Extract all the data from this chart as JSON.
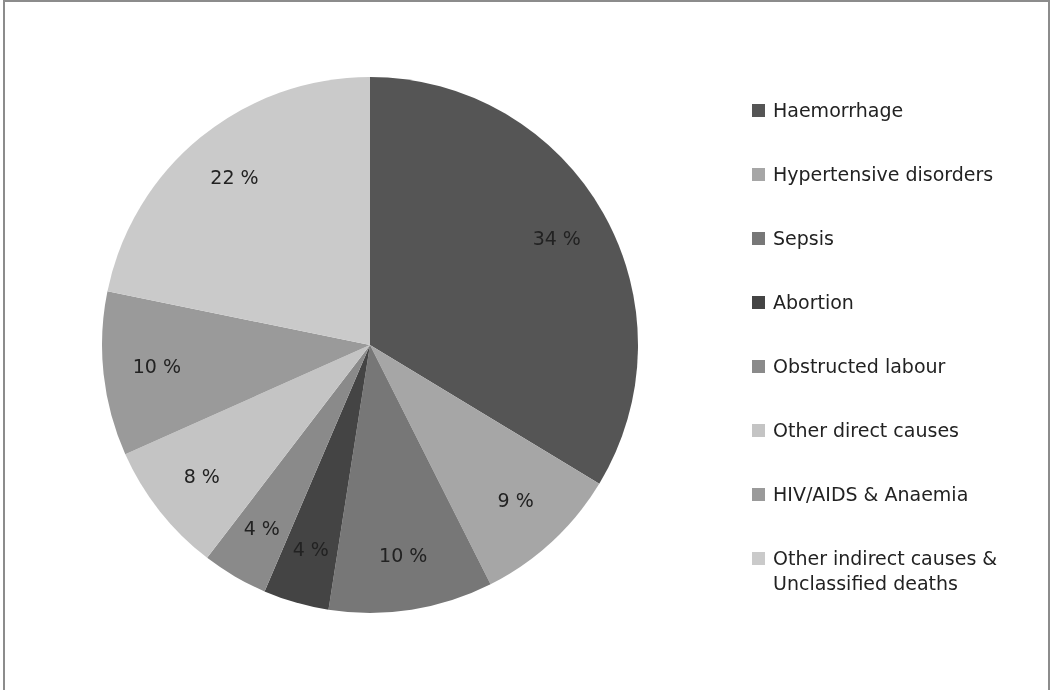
{
  "chart_data": {
    "type": "pie",
    "categories": [
      "Haemorrhage",
      "Hypertensive disorders",
      "Sepsis",
      "Abortion",
      "Obstructed labour",
      "Other direct causes",
      "HIV/AIDS & Anaemia",
      "Other indirect causes & Unclassified deaths"
    ],
    "values": [
      34,
      9,
      10,
      4,
      4,
      8,
      10,
      22
    ],
    "colors": [
      "#555555",
      "#a6a6a6",
      "#777777",
      "#444444",
      "#8a8a8a",
      "#c4c4c4",
      "#9a9a9a",
      "#cacaca"
    ],
    "value_labels": [
      "34 %",
      "9 %",
      "10 %",
      "4 %",
      "4 %",
      "8 %",
      "10 %",
      "22 %"
    ],
    "legend": "right"
  }
}
